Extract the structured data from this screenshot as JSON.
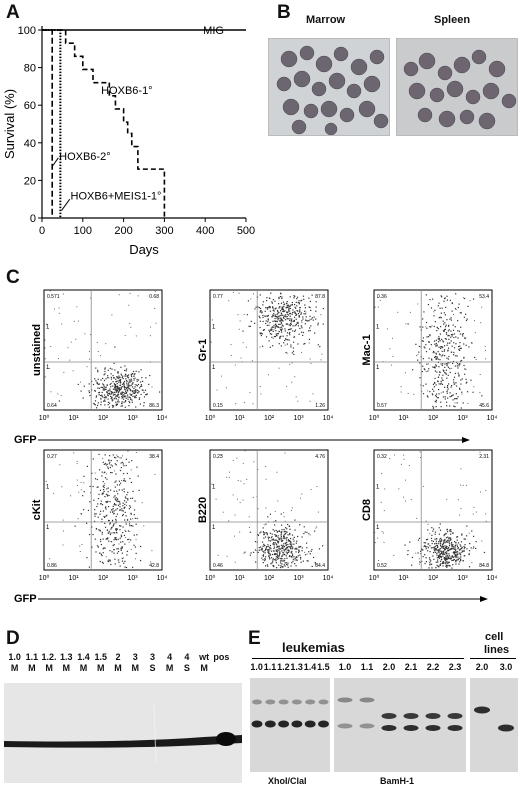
{
  "panels": {
    "a": "A",
    "b": "B",
    "c": "C",
    "d": "D",
    "e": "E"
  },
  "chart_data": {
    "type": "line",
    "ylabel": "Survival (%)",
    "xlabel": "Days",
    "xlim": [
      0,
      500
    ],
    "ylim": [
      0,
      100
    ],
    "xticks": [
      0,
      100,
      200,
      300,
      400,
      500
    ],
    "yticks": [
      0,
      20,
      40,
      60,
      80,
      100
    ],
    "series": [
      {
        "name": "MIG",
        "x": [
          0,
          500
        ],
        "y": [
          100,
          100
        ]
      },
      {
        "name": "HOXB6-1°",
        "x": [
          0,
          58,
          58,
          80,
          80,
          100,
          100,
          125,
          125,
          165,
          165,
          180,
          180,
          200,
          200,
          210,
          210,
          220,
          220,
          235,
          235,
          300,
          300
        ],
        "y": [
          100,
          100,
          93,
          93,
          86,
          86,
          79,
          79,
          72,
          72,
          65,
          65,
          58,
          58,
          51,
          51,
          45,
          45,
          38,
          38,
          26,
          26,
          0
        ]
      },
      {
        "name": "HOXB6-2°",
        "x": [
          0,
          25,
          25
        ],
        "y": [
          100,
          100,
          0
        ]
      },
      {
        "name": "HOXB6+MEIS1-1°",
        "x": [
          0,
          45,
          45
        ],
        "y": [
          100,
          100,
          0
        ]
      }
    ],
    "annotations": [
      "MIG",
      "HOXB6-1°",
      "HOXB6-2°",
      "HOXB6+MEIS1-1°"
    ]
  },
  "panel_b": {
    "marrow": "Marrow",
    "spleen": "Spleen"
  },
  "panel_c": {
    "xlabel": "GFP",
    "ticks": [
      "10⁰",
      "10¹",
      "10²",
      "10³",
      "10⁴"
    ],
    "plots": [
      {
        "ylabel": "unstained",
        "q": [
          "0.571",
          "0.68",
          "0.64",
          "86.3"
        ]
      },
      {
        "ylabel": "Gr-1",
        "q": [
          "0.77",
          "87.8",
          "0.15",
          "1.26"
        ]
      },
      {
        "ylabel": "Mac-1",
        "q": [
          "0.36",
          "53.4",
          "0.57",
          "45.6"
        ]
      },
      {
        "ylabel": "cKit",
        "q": [
          "0.27",
          "38.4",
          "0.86",
          "42.8"
        ]
      },
      {
        "ylabel": "B220",
        "q": [
          "0.23",
          "4.76",
          "0.46",
          "84.4"
        ]
      },
      {
        "ylabel": "CD8",
        "q": [
          "0.32",
          "2.31",
          "0.52",
          "84.8"
        ]
      }
    ]
  },
  "panel_d": {
    "lanes": [
      {
        "top": "1.0",
        "bot": "M"
      },
      {
        "top": "1.1",
        "bot": "M"
      },
      {
        "top": "1.2.",
        "bot": "M"
      },
      {
        "top": "1.3",
        "bot": "M"
      },
      {
        "top": "1.4",
        "bot": "M"
      },
      {
        "top": "1.5",
        "bot": "M"
      },
      {
        "top": "2",
        "bot": "M"
      },
      {
        "top": "3",
        "bot": "M"
      },
      {
        "top": "3",
        "bot": "S"
      },
      {
        "top": "4",
        "bot": "M"
      },
      {
        "top": "4",
        "bot": "S"
      },
      {
        "top": "wt",
        "bot": "M"
      },
      {
        "top": "",
        "bot": "pos"
      }
    ]
  },
  "panel_e": {
    "leukemias": "leukemias",
    "cell": "cell",
    "lines": "lines",
    "gel1_lanes": [
      "1.0",
      "1.1",
      "1.2",
      "1.3",
      "1.4",
      "1.5"
    ],
    "gel2_lanes": [
      "1.0",
      "1.1",
      "2.0",
      "2.1",
      "2.2",
      "2.3"
    ],
    "gel3_lanes": [
      "2.0",
      "3.0"
    ],
    "enzyme1": "XhoI/ClaI",
    "enzyme2": "BamH-1"
  }
}
